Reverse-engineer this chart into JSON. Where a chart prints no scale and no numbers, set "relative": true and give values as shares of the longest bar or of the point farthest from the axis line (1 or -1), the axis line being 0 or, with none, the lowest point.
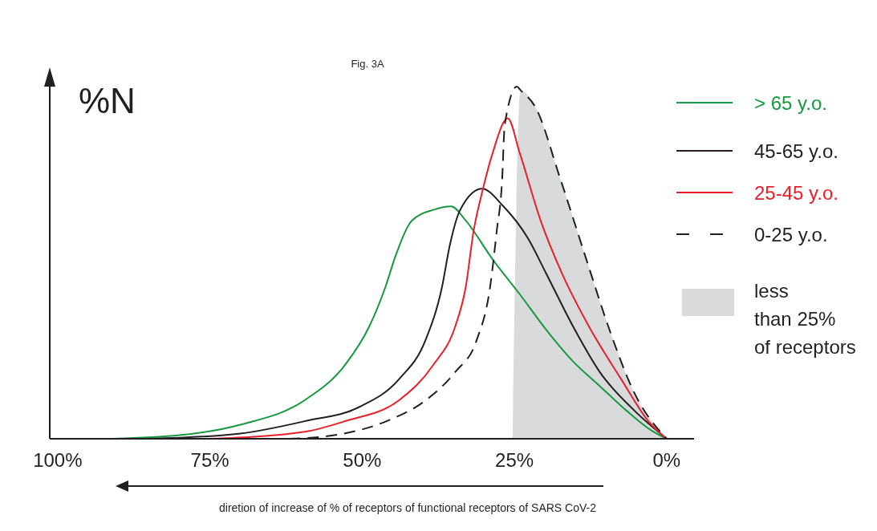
{
  "chart_data": {
    "type": "line",
    "title": "Fig. 3A",
    "ylabel": "%N",
    "xlabel": "diretion of increase of % of receptors of functional receptors of SARS CoV-2",
    "relative": true,
    "xlim": [
      101.3,
      -4.5
    ],
    "xticks": [
      {
        "value": 100,
        "label": "100%"
      },
      {
        "value": 75,
        "label": "75%"
      },
      {
        "value": 50,
        "label": "50%"
      },
      {
        "value": 25,
        "label": "25%"
      },
      {
        "value": 0,
        "label": "0%"
      }
    ],
    "legend": "right",
    "series": [
      {
        "name": "less\nthan 25%\nof receptors",
        "type": "area",
        "color": "#d9dadb",
        "x": [
          25.3,
          24.0,
          21.5,
          17.5,
          13.2,
          9.6,
          5.3,
          0
        ],
        "values": [
          0,
          0.99,
          0.94,
          0.74,
          0.51,
          0.32,
          0.13,
          0
        ]
      },
      {
        "name": "> 65 y.o.",
        "color": "#17993f",
        "line_style": "solid",
        "x": [
          91,
          80,
          70,
          59.4,
          52.8,
          48.8,
          46.2,
          44.5,
          41.8,
          38.3,
          35.4,
          33,
          28.6,
          24.1,
          19.8,
          15.4,
          11,
          6.6,
          2.2,
          0
        ],
        "values": [
          0,
          0.01,
          0.04,
          0.11,
          0.21,
          0.32,
          0.43,
          0.52,
          0.62,
          0.65,
          0.66,
          0.62,
          0.51,
          0.41,
          0.31,
          0.22,
          0.15,
          0.08,
          0.02,
          0
        ]
      },
      {
        "name": "45-65 y.o.",
        "color": "#231f20",
        "line_style": "solid",
        "x": [
          85,
          70,
          59.4,
          50.5,
          43.9,
          39.6,
          36.9,
          35.6,
          33.9,
          30.3,
          26.8,
          22.8,
          19.8,
          15.4,
          11,
          5.3,
          0
        ],
        "values": [
          0,
          0.015,
          0.05,
          0.09,
          0.17,
          0.28,
          0.43,
          0.55,
          0.65,
          0.71,
          0.66,
          0.57,
          0.47,
          0.32,
          0.19,
          0.08,
          0
        ]
      },
      {
        "name": "25-45 y.o.",
        "color": "#e8202a",
        "line_style": "solid",
        "x": [
          75,
          59.4,
          52.8,
          43.9,
          38.3,
          34.7,
          33,
          31.7,
          30.3,
          28.6,
          26.1,
          24.1,
          20.7,
          17.2,
          12.8,
          7.5,
          3,
          0
        ],
        "values": [
          0,
          0.02,
          0.05,
          0.11,
          0.21,
          0.32,
          0.43,
          0.59,
          0.7,
          0.81,
          0.91,
          0.81,
          0.62,
          0.47,
          0.32,
          0.17,
          0.05,
          0
        ]
      },
      {
        "name": "0-25 y.o.",
        "color": "#231f20",
        "line_style": "dashed",
        "x": [
          62,
          54.6,
          46,
          39.5,
          34.7,
          31.2,
          29,
          27.9,
          27,
          26.6,
          24.6,
          24.0,
          21.5,
          17.5,
          13.2,
          9.6,
          5.3,
          0
        ],
        "values": [
          0,
          0.01,
          0.05,
          0.11,
          0.19,
          0.28,
          0.43,
          0.59,
          0.74,
          0.89,
          1.0,
          0.99,
          0.94,
          0.74,
          0.51,
          0.32,
          0.13,
          0
        ]
      }
    ]
  }
}
